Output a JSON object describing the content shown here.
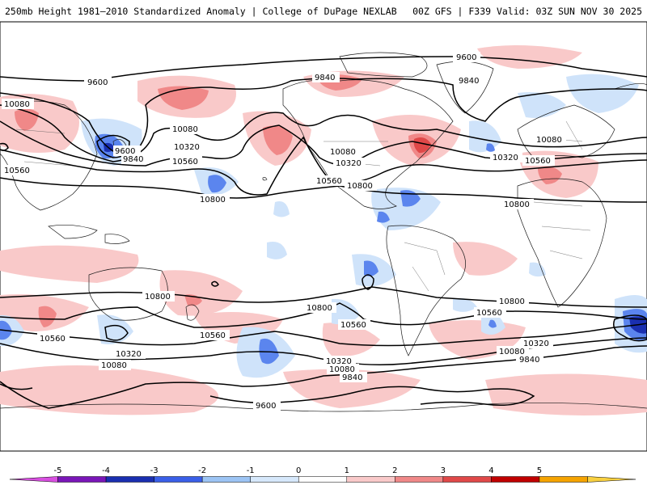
{
  "header": {
    "left_title": "250mb Height 1981–2010 Standardized Anomaly | College of DuPage NEXLAB",
    "right_title": "00Z GFS | F339 Valid: 03Z SUN NOV 30 2025"
  },
  "map": {
    "projection": "cylindrical equidistant, Pacific-centered",
    "field": "250mb geopotential height (m)",
    "shading": "standardized anomaly",
    "contour_labels": [
      {
        "text": "9600"
      },
      {
        "text": "9600"
      },
      {
        "text": "9600"
      },
      {
        "text": "9600"
      },
      {
        "text": "9840"
      },
      {
        "text": "9840"
      },
      {
        "text": "9840"
      },
      {
        "text": "9840"
      },
      {
        "text": "9840"
      },
      {
        "text": "10080"
      },
      {
        "text": "10080"
      },
      {
        "text": "10080"
      },
      {
        "text": "10080"
      },
      {
        "text": "10080"
      },
      {
        "text": "10080"
      },
      {
        "text": "10080"
      },
      {
        "text": "10320"
      },
      {
        "text": "10320"
      },
      {
        "text": "10320"
      },
      {
        "text": "10320"
      },
      {
        "text": "10320"
      },
      {
        "text": "10320"
      },
      {
        "text": "10560"
      },
      {
        "text": "10560"
      },
      {
        "text": "10560"
      },
      {
        "text": "10560"
      },
      {
        "text": "10560"
      },
      {
        "text": "10560"
      },
      {
        "text": "10560"
      },
      {
        "text": "10560"
      },
      {
        "text": "10800"
      },
      {
        "text": "10800"
      },
      {
        "text": "10800"
      },
      {
        "text": "10800"
      },
      {
        "text": "10800"
      },
      {
        "text": "10800"
      }
    ]
  },
  "colorbar": {
    "tick_labels": [
      "-5",
      "-4",
      "-3",
      "-2",
      "-1",
      "0",
      "1",
      "2",
      "3",
      "4",
      "5"
    ],
    "colors": [
      "#d84fe0",
      "#7a16b8",
      "#1a2fb0",
      "#3a5fe8",
      "#9cc4f4",
      "#d6e8fb",
      "#ffffff",
      "#f9c9c9",
      "#f08888",
      "#e04848",
      "#c00000",
      "#f5a300",
      "#f8d040"
    ]
  }
}
